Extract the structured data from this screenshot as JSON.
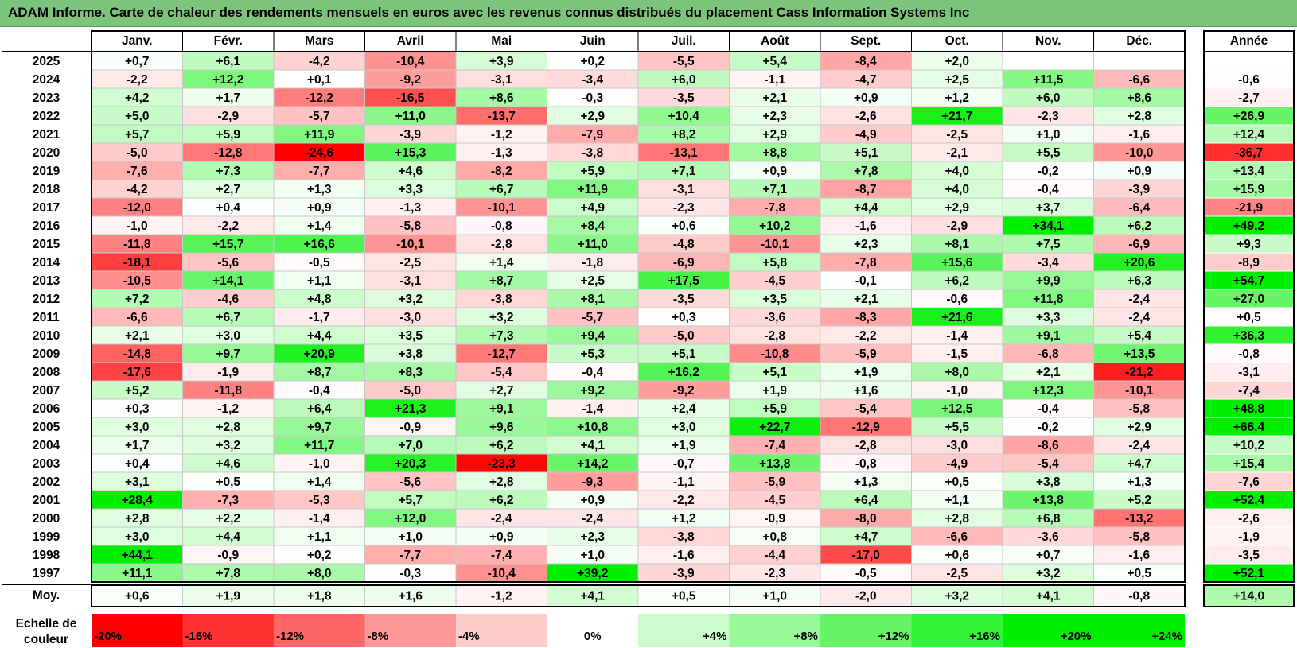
{
  "title": "ADAM Informe. Carte de chaleur des rendements mensuels en euros avec les revenus connus distribués du placement Cass Information Systems Inc",
  "colors": {
    "title_bg": "#7cc47c",
    "negative_max": "#ff0000",
    "neutral": "#ffffff",
    "positive_max": "#00ee00"
  },
  "chart_data": {
    "type": "heatmap",
    "title": "ADAM Informe. Carte de chaleur des rendements mensuels en euros avec les revenus connus distribués du placement Cass Information Systems Inc",
    "months": [
      "Janv.",
      "Févr.",
      "Mars",
      "Avril",
      "Mai",
      "Juin",
      "Juil.",
      "Août",
      "Sept.",
      "Oct.",
      "Nov.",
      "Déc."
    ],
    "year_header": "Année",
    "rows": [
      {
        "year": "2025",
        "values": [
          "+0,7",
          "+6,1",
          "-4,2",
          "-10,4",
          "+3,9",
          "+0,2",
          "-5,5",
          "+5,4",
          "-8,4",
          "+2,0",
          "",
          ""
        ],
        "annual": ""
      },
      {
        "year": "2024",
        "values": [
          "-2,2",
          "+12,2",
          "+0,1",
          "-9,2",
          "-3,1",
          "-3,4",
          "+6,0",
          "-1,1",
          "-4,7",
          "+2,5",
          "+11,5",
          "-6,6"
        ],
        "annual": "-0,6"
      },
      {
        "year": "2023",
        "values": [
          "+4,2",
          "+1,7",
          "-12,2",
          "-16,5",
          "+8,6",
          "-0,3",
          "-3,5",
          "+2,1",
          "+0,9",
          "+1,2",
          "+6,0",
          "+8,6"
        ],
        "annual": "-2,7"
      },
      {
        "year": "2022",
        "values": [
          "+5,0",
          "-2,9",
          "-5,7",
          "+11,0",
          "-13,7",
          "+2,9",
          "+10,4",
          "+2,3",
          "-2,6",
          "+21,7",
          "-2,3",
          "+2,8"
        ],
        "annual": "+26,9"
      },
      {
        "year": "2021",
        "values": [
          "+5,7",
          "+5,9",
          "+11,9",
          "-3,9",
          "-1,2",
          "-7,9",
          "+8,2",
          "+2,9",
          "-4,9",
          "-2,5",
          "+1,0",
          "-1,6"
        ],
        "annual": "+12,4"
      },
      {
        "year": "2020",
        "values": [
          "-5,0",
          "-12,8",
          "-24,6",
          "+15,3",
          "-1,3",
          "-3,8",
          "-13,1",
          "+8,8",
          "+5,1",
          "-2,1",
          "+5,5",
          "-10,0"
        ],
        "annual": "-36,7"
      },
      {
        "year": "2019",
        "values": [
          "-7,6",
          "+7,3",
          "-7,7",
          "+4,6",
          "-8,2",
          "+5,9",
          "+7,1",
          "+0,9",
          "+7,8",
          "+4,0",
          "-0,2",
          "+0,9"
        ],
        "annual": "+13,4"
      },
      {
        "year": "2018",
        "values": [
          "-4,2",
          "+2,7",
          "+1,3",
          "+3,3",
          "+6,7",
          "+11,9",
          "-3,1",
          "+7,1",
          "-8,7",
          "+4,0",
          "-0,4",
          "-3,9"
        ],
        "annual": "+15,9"
      },
      {
        "year": "2017",
        "values": [
          "-12,0",
          "+0,4",
          "+0,9",
          "-1,3",
          "-10,1",
          "+4,9",
          "-2,3",
          "-7,8",
          "+4,4",
          "+2,9",
          "+3,7",
          "-6,4"
        ],
        "annual": "-21,9"
      },
      {
        "year": "2016",
        "values": [
          "-1,0",
          "-2,2",
          "+1,4",
          "-5,8",
          "-0,8",
          "+8,4",
          "+0,6",
          "+10,2",
          "-1,6",
          "-2,9",
          "+34,1",
          "+6,2"
        ],
        "annual": "+49,2"
      },
      {
        "year": "2015",
        "values": [
          "-11,8",
          "+15,7",
          "+16,6",
          "-10,1",
          "-2,8",
          "+11,0",
          "-4,8",
          "-10,1",
          "+2,3",
          "+8,1",
          "+7,5",
          "-6,9"
        ],
        "annual": "+9,3"
      },
      {
        "year": "2014",
        "values": [
          "-18,1",
          "-5,6",
          "-0,5",
          "-2,5",
          "+1,4",
          "-1,8",
          "-6,9",
          "+5,8",
          "-7,8",
          "+15,6",
          "-3,4",
          "+20,6"
        ],
        "annual": "-8,9"
      },
      {
        "year": "2013",
        "values": [
          "-10,5",
          "+14,1",
          "+1,1",
          "-3,1",
          "+8,7",
          "+2,5",
          "+17,5",
          "-4,5",
          "-0,1",
          "+6,2",
          "+9,9",
          "+6,3"
        ],
        "annual": "+54,7"
      },
      {
        "year": "2012",
        "values": [
          "+7,2",
          "-4,6",
          "+4,8",
          "+3,2",
          "-3,8",
          "+8,1",
          "-3,5",
          "+3,5",
          "+2,1",
          "-0,6",
          "+11,8",
          "-2,4"
        ],
        "annual": "+27,0"
      },
      {
        "year": "2011",
        "values": [
          "-6,6",
          "+6,7",
          "-1,7",
          "-3,0",
          "+3,2",
          "-5,7",
          "+0,3",
          "-3,6",
          "-8,3",
          "+21,6",
          "+3,3",
          "-2,4"
        ],
        "annual": "+0,5"
      },
      {
        "year": "2010",
        "values": [
          "+2,1",
          "+3,0",
          "+4,4",
          "+3,5",
          "+7,3",
          "+9,4",
          "-5,0",
          "-2,8",
          "-2,2",
          "-1,4",
          "+9,1",
          "+5,4"
        ],
        "annual": "+36,3"
      },
      {
        "year": "2009",
        "values": [
          "-14,8",
          "+9,7",
          "+20,9",
          "+3,8",
          "-12,7",
          "+5,3",
          "+5,1",
          "-10,8",
          "-5,9",
          "-1,5",
          "-6,8",
          "+13,5"
        ],
        "annual": "-0,8"
      },
      {
        "year": "2008",
        "values": [
          "-17,6",
          "-1,9",
          "+8,7",
          "+8,3",
          "-5,4",
          "-0,4",
          "+16,2",
          "+5,1",
          "+1,9",
          "+8,0",
          "+2,1",
          "-21,2"
        ],
        "annual": "-3,1"
      },
      {
        "year": "2007",
        "values": [
          "+5,2",
          "-11,8",
          "-0,4",
          "-5,0",
          "+2,7",
          "+9,2",
          "-9,2",
          "+1,9",
          "+1,6",
          "-1,0",
          "+12,3",
          "-10,1"
        ],
        "annual": "-7,4"
      },
      {
        "year": "2006",
        "values": [
          "+0,3",
          "-1,2",
          "+6,4",
          "+21,3",
          "+9,1",
          "-1,4",
          "+2,4",
          "+5,9",
          "-5,4",
          "+12,5",
          "-0,4",
          "-5,8"
        ],
        "annual": "+48,8"
      },
      {
        "year": "2005",
        "values": [
          "+3,0",
          "+2,8",
          "+9,7",
          "-0,9",
          "+9,6",
          "+10,8",
          "+3,0",
          "+22,7",
          "-12,9",
          "+5,5",
          "-0,2",
          "+2,9"
        ],
        "annual": "+66,4"
      },
      {
        "year": "2004",
        "values": [
          "+1,7",
          "+3,2",
          "+11,7",
          "+7,0",
          "+6,2",
          "+4,1",
          "+1,9",
          "-7,4",
          "-2,8",
          "-3,0",
          "-8,6",
          "-2,4"
        ],
        "annual": "+10,2"
      },
      {
        "year": "2003",
        "values": [
          "+0,4",
          "+4,6",
          "-1,0",
          "+20,3",
          "-23,3",
          "+14,2",
          "-0,7",
          "+13,8",
          "-0,8",
          "-4,9",
          "-5,4",
          "+4,7"
        ],
        "annual": "+15,4"
      },
      {
        "year": "2002",
        "values": [
          "+3,1",
          "+0,5",
          "+1,4",
          "-5,6",
          "+2,8",
          "-9,3",
          "-1,1",
          "-5,9",
          "+1,3",
          "+0,5",
          "+3,8",
          "+1,3"
        ],
        "annual": "-7,6"
      },
      {
        "year": "2001",
        "values": [
          "+28,4",
          "-7,3",
          "-5,3",
          "+5,7",
          "+6,2",
          "+0,9",
          "-2,2",
          "-4,5",
          "+6,4",
          "+1,1",
          "+13,8",
          "+5,2"
        ],
        "annual": "+52,4"
      },
      {
        "year": "2000",
        "values": [
          "+2,8",
          "+2,2",
          "-1,4",
          "+12,0",
          "-2,4",
          "-2,4",
          "+1,2",
          "-0,9",
          "-8,0",
          "+2,8",
          "+6,8",
          "-13,2"
        ],
        "annual": "-2,6"
      },
      {
        "year": "1999",
        "values": [
          "+3,0",
          "+4,4",
          "+1,1",
          "+1,0",
          "+0,9",
          "+2,3",
          "-3,8",
          "+0,8",
          "+4,7",
          "-6,6",
          "-3,6",
          "-5,8"
        ],
        "annual": "-1,9"
      },
      {
        "year": "1998",
        "values": [
          "+44,1",
          "-0,9",
          "+0,2",
          "-7,7",
          "-7,4",
          "+1,0",
          "-1,6",
          "-4,4",
          "-17,0",
          "+0,6",
          "+0,7",
          "-1,6"
        ],
        "annual": "-3,5"
      },
      {
        "year": "1997",
        "values": [
          "+11,1",
          "+7,8",
          "+8,0",
          "-0,3",
          "-10,4",
          "+39,2",
          "-3,9",
          "-2,3",
          "-0,5",
          "-2,5",
          "+3,2",
          "+0,5"
        ],
        "annual": "+52,1"
      }
    ],
    "average": {
      "label": "Moy.",
      "values": [
        "+0,6",
        "+1,9",
        "+1,8",
        "+1,6",
        "-1,2",
        "+4,1",
        "+0,5",
        "+1,0",
        "-2,0",
        "+3,2",
        "+4,1",
        "-0,8"
      ],
      "annual": "+14,0"
    },
    "scale": {
      "label_line1": "Echelle de",
      "label_line2": "couleur",
      "steps": [
        {
          "label": "-20%",
          "value": -20
        },
        {
          "label": "-16%",
          "value": -16
        },
        {
          "label": "-12%",
          "value": -12
        },
        {
          "label": "-8%",
          "value": -8
        },
        {
          "label": "-4%",
          "value": -4
        },
        {
          "label": "0%",
          "value": 0
        },
        {
          "label": "+4%",
          "value": 4
        },
        {
          "label": "+8%",
          "value": 8
        },
        {
          "label": "+12%",
          "value": 12
        },
        {
          "label": "+16%",
          "value": 16
        },
        {
          "label": "+20%",
          "value": 20
        },
        {
          "label": "+24%",
          "value": 24
        }
      ]
    }
  }
}
